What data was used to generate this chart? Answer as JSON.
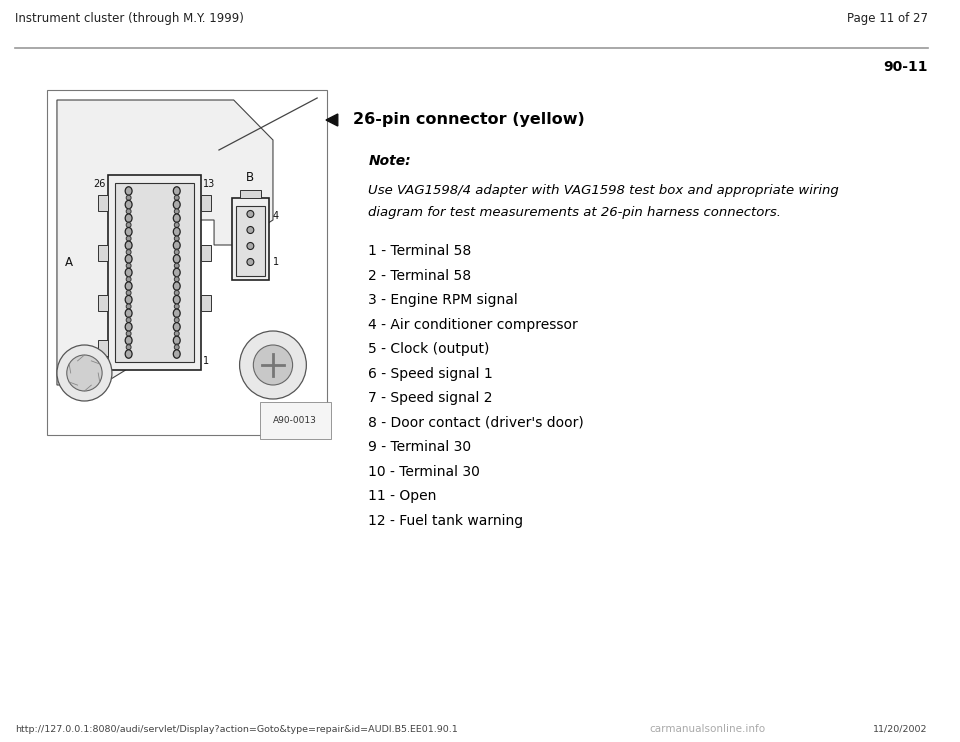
{
  "page_header_left": "Instrument cluster (through M.Y. 1999)",
  "page_header_right": "Page 11 of 27",
  "section_number": "90-11",
  "connector_title": "26-pin connector (yellow)",
  "note_label": "Note:",
  "note_text_line1": "Use VAG1598/4 adapter with VAG1598 test box and appropriate wiring",
  "note_text_line2": "diagram for test measurements at 26-pin harness connectors.",
  "pin_list": [
    "1 - Terminal 58",
    "2 - Terminal 58",
    "3 - Engine RPM signal",
    "4 - Air conditioner compressor",
    "5 - Clock (output)",
    "6 - Speed signal 1",
    "7 - Speed signal 2",
    "8 - Door contact (driver's door)",
    "9 - Terminal 30",
    "10 - Terminal 30",
    "11 - Open",
    "12 - Fuel tank warning"
  ],
  "footer_url": "http://127.0.0.1:8080/audi/servlet/Display?action=Goto&type=repair&id=AUDI.B5.EE01.90.1",
  "footer_date": "11/20/2002",
  "footer_site": "carmanualsonline.info",
  "bg_color": "#ffffff",
  "header_line_color": "#999999",
  "text_color": "#000000",
  "header_text_color": "#222222",
  "diagram_border": "#444444",
  "diagram_fill": "#ffffff",
  "connector_edge": "#333333",
  "connector_fill": "#e0e0e0"
}
